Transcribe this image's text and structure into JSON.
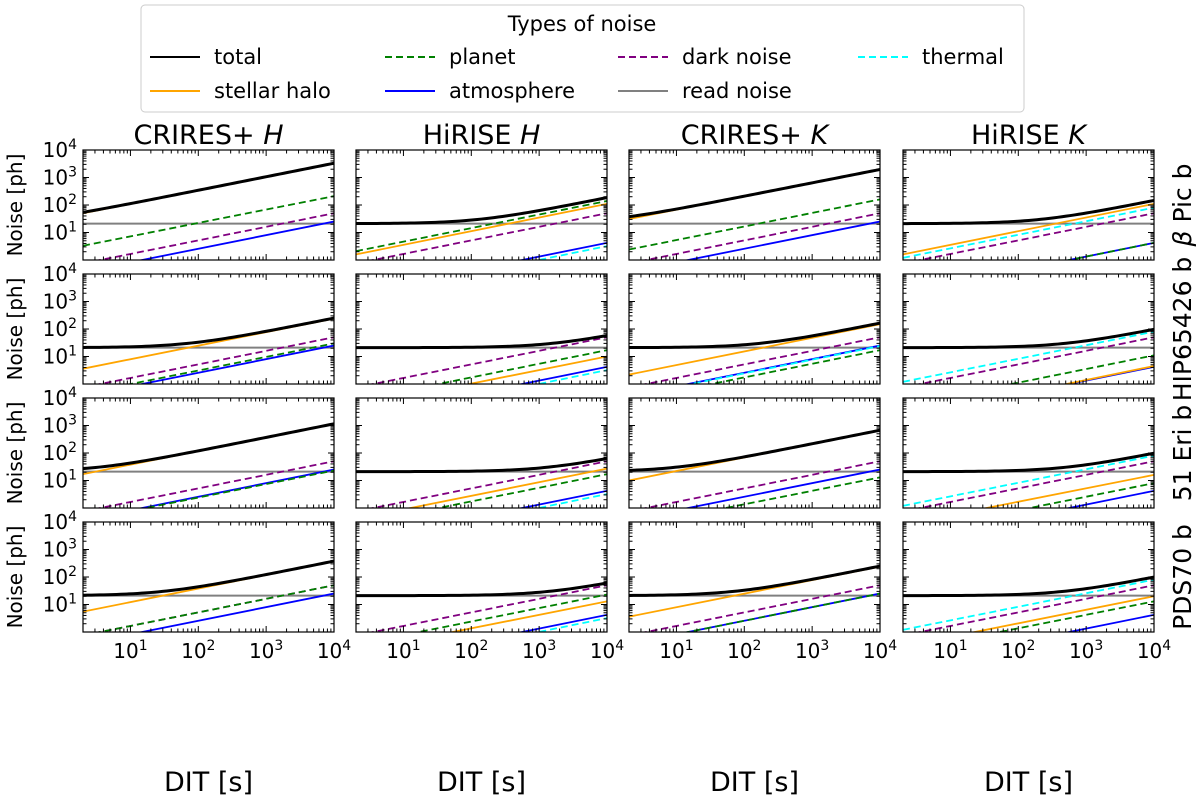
{
  "figure": {
    "legend_title": "Types of noise",
    "x_axis_label": "DIT [s]",
    "y_axis_label": "Noise [ph]"
  },
  "chart_data": {
    "type": "line",
    "x_scale": "log",
    "y_scale": "log",
    "xlim": [
      2,
      10000
    ],
    "ylim": [
      1,
      10000
    ],
    "x_ticks": [
      {
        "value": 10,
        "exp": "1"
      },
      {
        "value": 100,
        "exp": "2"
      },
      {
        "value": 1000,
        "exp": "3"
      },
      {
        "value": 10000,
        "exp": "4"
      }
    ],
    "y_ticks": [
      {
        "value": 10,
        "exp": "1"
      },
      {
        "value": 100,
        "exp": "2"
      },
      {
        "value": 1000,
        "exp": "3"
      },
      {
        "value": 10000,
        "exp": "4"
      }
    ],
    "tick_base": "10",
    "legend_position": "top-center",
    "legend": [
      {
        "key": "total",
        "label": "total",
        "color": "#000000",
        "dash": "solid"
      },
      {
        "key": "halo",
        "label": "stellar halo",
        "color": "#ffa500",
        "dash": "solid"
      },
      {
        "key": "planet",
        "label": "planet",
        "color": "#008000",
        "dash": "dashed"
      },
      {
        "key": "atmosphere",
        "label": "atmosphere",
        "color": "#0000ff",
        "dash": "solid"
      },
      {
        "key": "dark",
        "label": "dark noise",
        "color": "#800080",
        "dash": "dashed"
      },
      {
        "key": "read",
        "label": "read noise",
        "color": "#808080",
        "dash": "solid"
      },
      {
        "key": "thermal",
        "label": "thermal",
        "color": "#00ffff",
        "dash": "dashed"
      }
    ],
    "columns": [
      {
        "prefix": "CRIRES+ ",
        "band": "H"
      },
      {
        "prefix": "HiRISE ",
        "band": "H"
      },
      {
        "prefix": "CRIRES+ ",
        "band": "K"
      },
      {
        "prefix": "HiRISE ",
        "band": "K"
      }
    ],
    "rows": [
      {
        "label": "Pic b",
        "greek": "β"
      },
      {
        "label": "HIP65426 b",
        "greek": ""
      },
      {
        "label": "51 Eri b",
        "greek": ""
      },
      {
        "label": "PDS70 b",
        "greek": ""
      }
    ],
    "read_noise_level": 21,
    "panels": [
      [
        {
          "halo": [
            2,
            50,
            10000,
            3300
          ],
          "planet": [
            2,
            3.3,
            10000,
            210
          ],
          "dark": [
            2,
            0.75,
            10000,
            50
          ],
          "atmosphere": [
            2,
            0.37,
            10000,
            25
          ],
          "thermal": null
        },
        {
          "halo": [
            2,
            1.6,
            10000,
            110
          ],
          "planet": [
            2,
            2.1,
            10000,
            140
          ],
          "dark": [
            2,
            0.75,
            10000,
            50
          ],
          "atmosphere": [
            2,
            0.06,
            10000,
            4.2
          ],
          "thermal": [
            2,
            0.045,
            10000,
            3.2
          ]
        },
        {
          "halo": [
            2,
            31,
            10000,
            1950
          ],
          "planet": [
            2,
            2.4,
            10000,
            160
          ],
          "dark": [
            2,
            0.75,
            10000,
            50
          ],
          "atmosphere": [
            2,
            0.37,
            10000,
            25
          ],
          "thermal": null
        },
        {
          "halo": [
            2,
            1.6,
            10000,
            110
          ],
          "planet": [
            2,
            0.06,
            10000,
            4.2
          ],
          "dark": [
            2,
            0.75,
            10000,
            50
          ],
          "atmosphere": [
            2,
            0.06,
            10000,
            4.2
          ],
          "thermal": [
            2,
            1.2,
            10000,
            80
          ]
        }
      ],
      [
        {
          "halo": [
            2,
            3.6,
            10000,
            240
          ],
          "planet": [
            2,
            0.45,
            10000,
            30
          ],
          "dark": [
            2,
            0.75,
            10000,
            50
          ],
          "atmosphere": [
            2,
            0.37,
            10000,
            25
          ],
          "thermal": null
        },
        {
          "halo": [
            2,
            0.15,
            10000,
            10
          ],
          "planet": [
            2,
            0.25,
            10000,
            17
          ],
          "dark": [
            2,
            0.75,
            10000,
            50
          ],
          "atmosphere": [
            2,
            0.06,
            10000,
            4.2
          ],
          "thermal": [
            2,
            0.045,
            10000,
            3.2
          ]
        },
        {
          "halo": [
            2,
            2.2,
            10000,
            150
          ],
          "planet": [
            2,
            0.25,
            10000,
            17
          ],
          "dark": [
            2,
            0.75,
            10000,
            50
          ],
          "atmosphere": [
            2,
            0.37,
            10000,
            25
          ],
          "thermal": [
            2,
            0.35,
            10000,
            24
          ]
        },
        {
          "halo": [
            2,
            0.06,
            10000,
            4.5
          ],
          "planet": [
            2,
            0.16,
            10000,
            11
          ],
          "dark": [
            2,
            0.75,
            10000,
            50
          ],
          "atmosphere": [
            2,
            0.06,
            10000,
            4.2
          ],
          "thermal": [
            2,
            1.2,
            10000,
            80
          ]
        }
      ],
      [
        {
          "halo": [
            2,
            17,
            10000,
            1150
          ],
          "planet": [
            2,
            0.35,
            10000,
            23
          ],
          "dark": [
            2,
            0.75,
            10000,
            50
          ],
          "atmosphere": [
            2,
            0.37,
            10000,
            25
          ],
          "thermal": null
        },
        {
          "halo": [
            2,
            0.4,
            10000,
            27
          ],
          "planet": [
            2,
            0.25,
            10000,
            17
          ],
          "dark": [
            2,
            0.75,
            10000,
            50
          ],
          "atmosphere": [
            2,
            0.06,
            10000,
            4.2
          ],
          "thermal": [
            2,
            0.045,
            10000,
            3.2
          ]
        },
        {
          "halo": [
            2,
            10,
            10000,
            670
          ],
          "planet": [
            2,
            0.2,
            10000,
            13
          ],
          "dark": [
            2,
            0.75,
            10000,
            50
          ],
          "atmosphere": [
            2,
            0.37,
            10000,
            25
          ],
          "thermal": null
        },
        {
          "halo": [
            2,
            0.25,
            10000,
            16
          ],
          "planet": [
            2,
            0.12,
            10000,
            8
          ],
          "dark": [
            2,
            0.75,
            10000,
            50
          ],
          "atmosphere": [
            2,
            0.06,
            10000,
            4.2
          ],
          "thermal": [
            2,
            1.2,
            10000,
            80
          ]
        }
      ],
      [
        {
          "halo": [
            2,
            5.5,
            10000,
            370
          ],
          "planet": [
            2,
            0.75,
            10000,
            50
          ],
          "dark": [
            2,
            0.75,
            10000,
            50
          ],
          "atmosphere": [
            2,
            0.37,
            10000,
            25
          ],
          "thermal": null
        },
        {
          "halo": [
            2,
            0.2,
            10000,
            13
          ],
          "planet": [
            2,
            0.35,
            10000,
            23
          ],
          "dark": [
            2,
            0.75,
            10000,
            50
          ],
          "atmosphere": [
            2,
            0.06,
            10000,
            4.2
          ],
          "thermal": [
            2,
            0.045,
            10000,
            3.2
          ]
        },
        {
          "halo": [
            2,
            3.6,
            10000,
            240
          ],
          "planet": [
            2,
            0.37,
            10000,
            25
          ],
          "dark": [
            2,
            0.75,
            10000,
            50
          ],
          "atmosphere": [
            2,
            0.37,
            10000,
            25
          ],
          "thermal": null
        },
        {
          "halo": [
            2,
            0.3,
            10000,
            20
          ],
          "planet": [
            2,
            0.2,
            10000,
            13
          ],
          "dark": [
            2,
            0.75,
            10000,
            50
          ],
          "atmosphere": [
            2,
            0.06,
            10000,
            4.2
          ],
          "thermal": [
            2,
            1.2,
            10000,
            80
          ]
        }
      ]
    ]
  }
}
